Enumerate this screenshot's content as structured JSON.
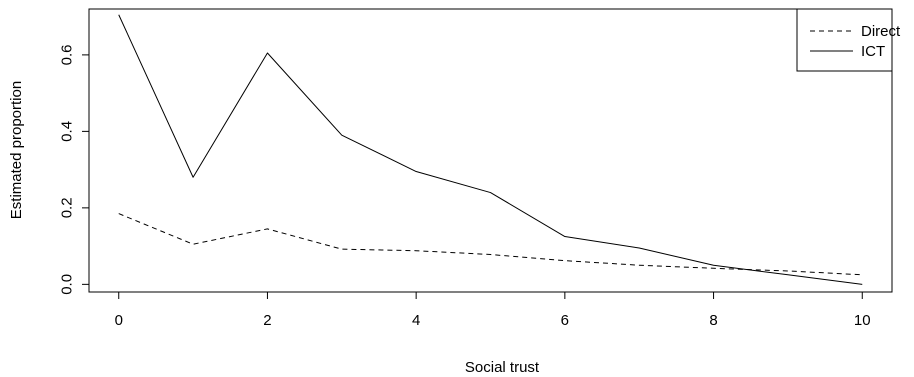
{
  "chart_data": {
    "type": "line",
    "title": "",
    "xlabel": "Social trust",
    "ylabel": "Estimated proportion",
    "x": [
      0,
      1,
      2,
      3,
      4,
      5,
      6,
      7,
      8,
      9,
      10
    ],
    "xlim": [
      -0.4,
      10.4
    ],
    "ylim": [
      -0.02,
      0.72
    ],
    "xticks": [
      0,
      2,
      4,
      6,
      8,
      10
    ],
    "xtick_labels": [
      "0",
      "2",
      "4",
      "6",
      "8",
      "10"
    ],
    "yticks": [
      0.0,
      0.2,
      0.4,
      0.6
    ],
    "ytick_labels": [
      "0.0",
      "0.2",
      "0.4",
      "0.6"
    ],
    "grid": false,
    "legend_position": "top-right",
    "series": [
      {
        "name": "Direct",
        "line_style": "dashed",
        "color": "#000000",
        "values": [
          0.185,
          0.105,
          0.145,
          0.092,
          0.088,
          0.078,
          0.062,
          0.05,
          0.042,
          0.035,
          0.025
        ]
      },
      {
        "name": "ICT",
        "line_style": "solid",
        "color": "#000000",
        "values": [
          0.705,
          0.28,
          0.605,
          0.39,
          0.295,
          0.24,
          0.125,
          0.095,
          0.05,
          0.025,
          0.0
        ]
      }
    ]
  }
}
